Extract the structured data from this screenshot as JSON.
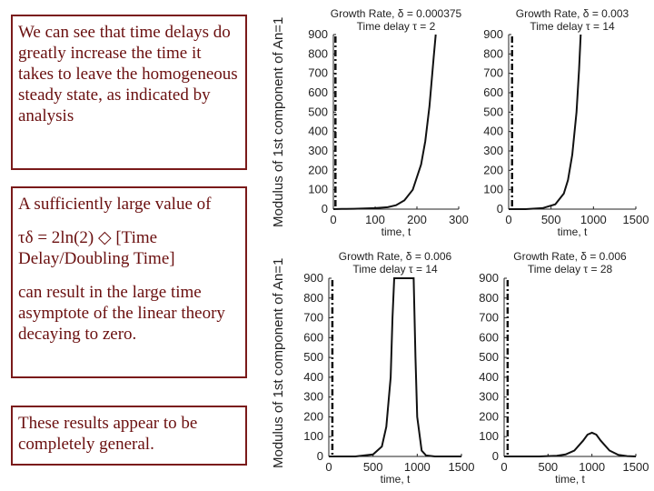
{
  "text_boxes": {
    "box1": "We can see that time delays do greatly increase the time it takes to leave the homogeneous steady state, as indicated by analysis",
    "box2_p1": "A sufficiently large value of",
    "box2_p2": "τδ  = 2ln(2)  ◇ [Time Delay/Doubling Time]",
    "box2_p3": "can result in the large time asymptote of the linear theory decaying to zero.",
    "box3": "These results appear to be completely general."
  },
  "y_axis_label_top": "Modulus of 1st component of An=1",
  "y_axis_label_bottom": "Modulus of 1st component of An=1",
  "chart_data": [
    {
      "type": "line",
      "title": "Growth Rate, δ = 0.000375",
      "subtitle": "Time delay τ = 2",
      "xlabel": "time, t",
      "xlim": [
        0,
        300
      ],
      "ylim": [
        0,
        900
      ],
      "xticks": [
        0,
        100,
        200,
        300
      ],
      "yticks": [
        0,
        100,
        200,
        300,
        400,
        500,
        600,
        700,
        800,
        900
      ],
      "dashed_x": 5,
      "x": [
        0,
        20,
        50,
        100,
        130,
        150,
        170,
        190,
        210,
        220,
        230,
        240,
        245
      ],
      "y": [
        0,
        1,
        2,
        5,
        10,
        20,
        45,
        100,
        230,
        350,
        530,
        780,
        900
      ]
    },
    {
      "type": "line",
      "title": "Growth Rate, δ = 0.003",
      "subtitle": "Time delay τ = 14",
      "xlabel": "time, t",
      "xlim": [
        0,
        1500
      ],
      "ylim": [
        0,
        900
      ],
      "xticks": [
        0,
        500,
        1000,
        1500
      ],
      "yticks": [
        0,
        100,
        200,
        300,
        400,
        500,
        600,
        700,
        800,
        900
      ],
      "dashed_x": 40,
      "x": [
        0,
        200,
        400,
        550,
        650,
        700,
        750,
        800,
        830,
        850
      ],
      "y": [
        0,
        0,
        5,
        25,
        80,
        150,
        280,
        500,
        720,
        900
      ]
    },
    {
      "type": "line",
      "title": "Growth Rate, δ = 0.006",
      "subtitle": "Time delay τ = 14",
      "xlabel": "time, t",
      "xlim": [
        0,
        1500
      ],
      "ylim": [
        0,
        900
      ],
      "xticks": [
        0,
        500,
        1000,
        1500
      ],
      "yticks": [
        0,
        100,
        200,
        300,
        400,
        500,
        600,
        700,
        800,
        900
      ],
      "dashed_x": 40,
      "x": [
        0,
        300,
        500,
        600,
        650,
        700,
        720,
        740,
        960,
        980,
        1000,
        1050,
        1100,
        1200,
        1500
      ],
      "y": [
        0,
        0,
        10,
        50,
        150,
        400,
        700,
        900,
        900,
        500,
        200,
        30,
        5,
        0,
        0
      ]
    },
    {
      "type": "line",
      "title": "Growth Rate, δ = 0.006",
      "subtitle": "Time delay τ = 28",
      "xlabel": "time, t",
      "xlim": [
        0,
        1500
      ],
      "ylim": [
        0,
        900
      ],
      "xticks": [
        0,
        500,
        1000,
        1500
      ],
      "yticks": [
        0,
        100,
        200,
        300,
        400,
        500,
        600,
        700,
        800,
        900
      ],
      "dashed_x": 40,
      "x": [
        0,
        400,
        600,
        700,
        800,
        900,
        950,
        1000,
        1050,
        1100,
        1200,
        1300,
        1400,
        1500
      ],
      "y": [
        0,
        0,
        3,
        10,
        30,
        80,
        110,
        120,
        110,
        80,
        30,
        8,
        2,
        0
      ]
    }
  ]
}
